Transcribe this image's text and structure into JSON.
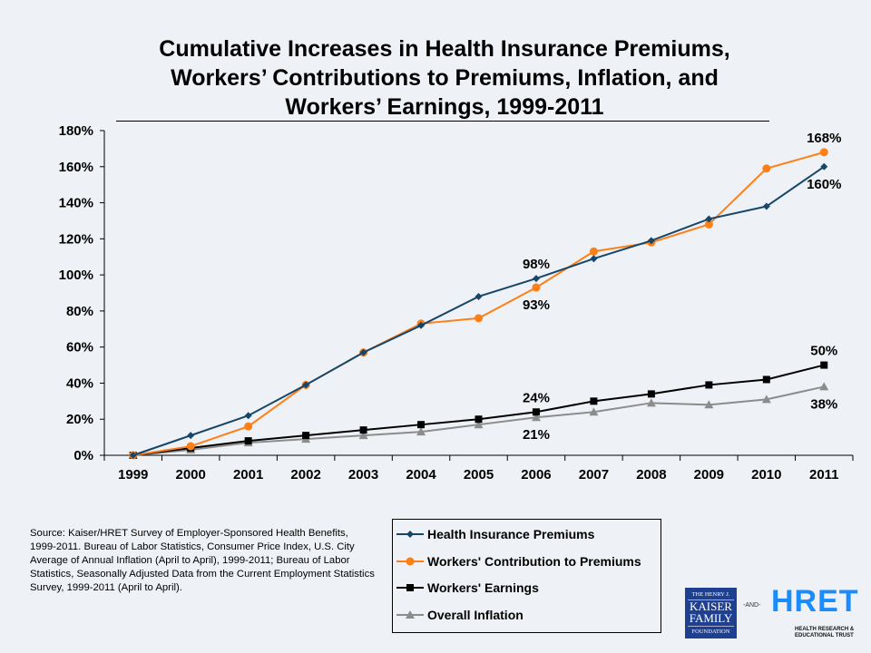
{
  "chart_data": {
    "type": "line",
    "title": [
      "Cumulative Increases in Health Insurance Premiums,",
      "Workers’ Contributions to Premiums, Inflation, and",
      "Workers’ Earnings, 1999-2011"
    ],
    "categories": [
      "1999",
      "2000",
      "2001",
      "2002",
      "2003",
      "2004",
      "2005",
      "2006",
      "2007",
      "2008",
      "2009",
      "2010",
      "2011"
    ],
    "yticks": [
      "0%",
      "20%",
      "40%",
      "60%",
      "80%",
      "100%",
      "120%",
      "140%",
      "160%",
      "180%"
    ],
    "ylim": [
      0,
      180
    ],
    "grid": false,
    "legend_placement": "bottom",
    "series": [
      {
        "name": "Health Insurance Premiums",
        "color": "#17466b",
        "marker": "diamond",
        "values": [
          0,
          11,
          22,
          39,
          57,
          72,
          88,
          98,
          109,
          119,
          131,
          138,
          160
        ]
      },
      {
        "name": "Workers' Contribution to Premiums",
        "color": "#ff7f17",
        "marker": "circle",
        "values": [
          0,
          5,
          16,
          39,
          57,
          73,
          76,
          93,
          113,
          118,
          128,
          159,
          168
        ]
      },
      {
        "name": "Workers' Earnings",
        "color": "#000000",
        "marker": "square",
        "values": [
          0,
          4,
          8,
          11,
          14,
          17,
          20,
          24,
          30,
          34,
          39,
          42,
          50
        ]
      },
      {
        "name": "Overall Inflation",
        "color": "#8c8c8c",
        "marker": "triangle",
        "values": [
          0,
          3,
          7,
          9,
          11,
          13,
          17,
          21,
          24,
          29,
          28,
          31,
          38
        ]
      }
    ],
    "annotations": [
      {
        "text": "168%",
        "series": 1,
        "index": 12,
        "pos": "above"
      },
      {
        "text": "160%",
        "series": 0,
        "index": 12,
        "pos": "below"
      },
      {
        "text": "98%",
        "series": 0,
        "index": 7,
        "pos": "above"
      },
      {
        "text": "93%",
        "series": 1,
        "index": 7,
        "pos": "below"
      },
      {
        "text": "24%",
        "series": 2,
        "index": 7,
        "pos": "above"
      },
      {
        "text": "21%",
        "series": 3,
        "index": 7,
        "pos": "below"
      },
      {
        "text": "50%",
        "series": 2,
        "index": 12,
        "pos": "above"
      },
      {
        "text": "38%",
        "series": 3,
        "index": 12,
        "pos": "below"
      }
    ]
  },
  "source": "Source:  Kaiser/HRET Survey of Employer-Sponsored Health Benefits, 1999-2011.  Bureau of Labor Statistics, Consumer Price Index, U.S. City Average of Annual Inflation (April to April), 1999-2011; Bureau of Labor Statistics, Seasonally Adjusted Data from the Current Employment Statistics Survey, 1999-2011 (April to April).",
  "logos": {
    "kff": [
      "THE HENRY J.",
      "KAISER",
      "FAMILY",
      "FOUNDATION"
    ],
    "and": "-AND-",
    "hret": "HRET",
    "hret_sub": [
      "HEALTH RESEARCH &",
      "EDUCATIONAL TRUST"
    ]
  }
}
